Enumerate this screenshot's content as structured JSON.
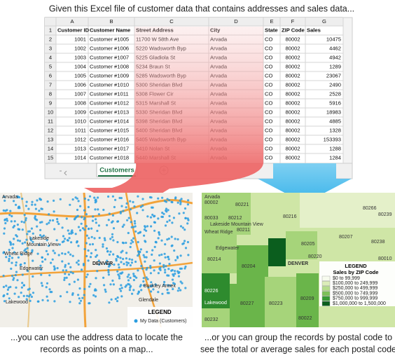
{
  "caption_top": "Given this Excel file of customer data that contains addresses and sales data...",
  "spreadsheet": {
    "column_letters": [
      "A",
      "B",
      "C",
      "D",
      "E",
      "F",
      "G"
    ],
    "row_numbers": [
      1,
      2,
      3,
      4,
      5,
      6,
      7,
      8,
      9,
      10,
      11,
      12,
      13,
      14,
      15
    ],
    "headers": [
      "Customer ID",
      "Customer Name",
      "Street Address",
      "City",
      "State",
      "ZIP Code",
      "Sales"
    ],
    "rows": [
      [
        1001,
        "Customer #1005",
        "11700 W 58th Ave",
        "Arvada",
        "CO",
        "80002",
        10475
      ],
      [
        1002,
        "Customer #1006",
        "5220 Wadsworth Byp",
        "Arvada",
        "CO",
        "80002",
        4462
      ],
      [
        1003,
        "Customer #1007",
        "5225 Gladiola St",
        "Arvada",
        "CO",
        "80002",
        4942
      ],
      [
        1004,
        "Customer #1008",
        "5234 Braun St",
        "Arvada",
        "CO",
        "80002",
        1289
      ],
      [
        1005,
        "Customer #1009",
        "5285 Wadsworth Byp",
        "Arvada",
        "CO",
        "80002",
        23067
      ],
      [
        1006,
        "Customer #1010",
        "5300 Sheridan Blvd",
        "Arvada",
        "CO",
        "80002",
        2490
      ],
      [
        1007,
        "Customer #1011",
        "5308 Flower Cir",
        "Arvada",
        "CO",
        "80002",
        2528
      ],
      [
        1008,
        "Customer #1012",
        "5315 Marshall St",
        "Arvada",
        "CO",
        "80002",
        5916
      ],
      [
        1009,
        "Customer #1013",
        "5330 Sheridan Blvd",
        "Arvada",
        "CO",
        "80002",
        18983
      ],
      [
        1010,
        "Customer #1014",
        "5398 Sheridan Blvd",
        "Arvada",
        "CO",
        "80002",
        4885
      ],
      [
        1011,
        "Customer #1015",
        "5400 Sheridan Blvd",
        "Arvada",
        "CO",
        "80002",
        1328
      ],
      [
        1012,
        "Customer #1016",
        "5405 Wadsworth Byp",
        "Arvada",
        "CO",
        "80002",
        153393
      ],
      [
        1013,
        "Customer #1017",
        "5410 Nolan St",
        "Arvada",
        "CO",
        "80002",
        1288
      ],
      [
        1014,
        "Customer #1018",
        "5440 Marshall St",
        "Arvada",
        "CO",
        "80002",
        1284
      ]
    ],
    "sheet_tab": "Customers"
  },
  "left_map": {
    "places": [
      "Arvada",
      "Lakeside",
      "Mountain View",
      "Wheat Ridge",
      "Edgewater",
      "DENVER",
      "Lakewood",
      "Glendale",
      "Buckley Annex"
    ],
    "legend_title": "LEGEND",
    "legend_item": "My Data (Customers)"
  },
  "right_map": {
    "places": [
      "Arvada",
      "Lakeside",
      "Mountain View",
      "Wheat Ridge",
      "Edgewater",
      "DENVER",
      "Lakewood"
    ],
    "zips": [
      "80002",
      "80221",
      "80033",
      "80212",
      "80211",
      "80216",
      "80266",
      "80239",
      "80205",
      "80207",
      "80238",
      "80214",
      "80204",
      "80220",
      "80010",
      "80226",
      "80227",
      "80223",
      "80209",
      "80232",
      "80022"
    ],
    "legend_title": "LEGEND",
    "legend_subtitle": "Sales by ZIP Code",
    "legend_items": [
      "$0 to 99,999",
      "$100,000 to 249,999",
      "$250,000 to 499,999",
      "$500,000 to 749,999",
      "$750,000 to 999,999",
      "$1,000,000 to 1,500,000"
    ]
  },
  "caption_left": [
    "...you can use the address data to locate the",
    "records as points on a map..."
  ],
  "caption_right": [
    "...or you can group the records by postal code to",
    "see the total or average sales for each postal code"
  ]
}
